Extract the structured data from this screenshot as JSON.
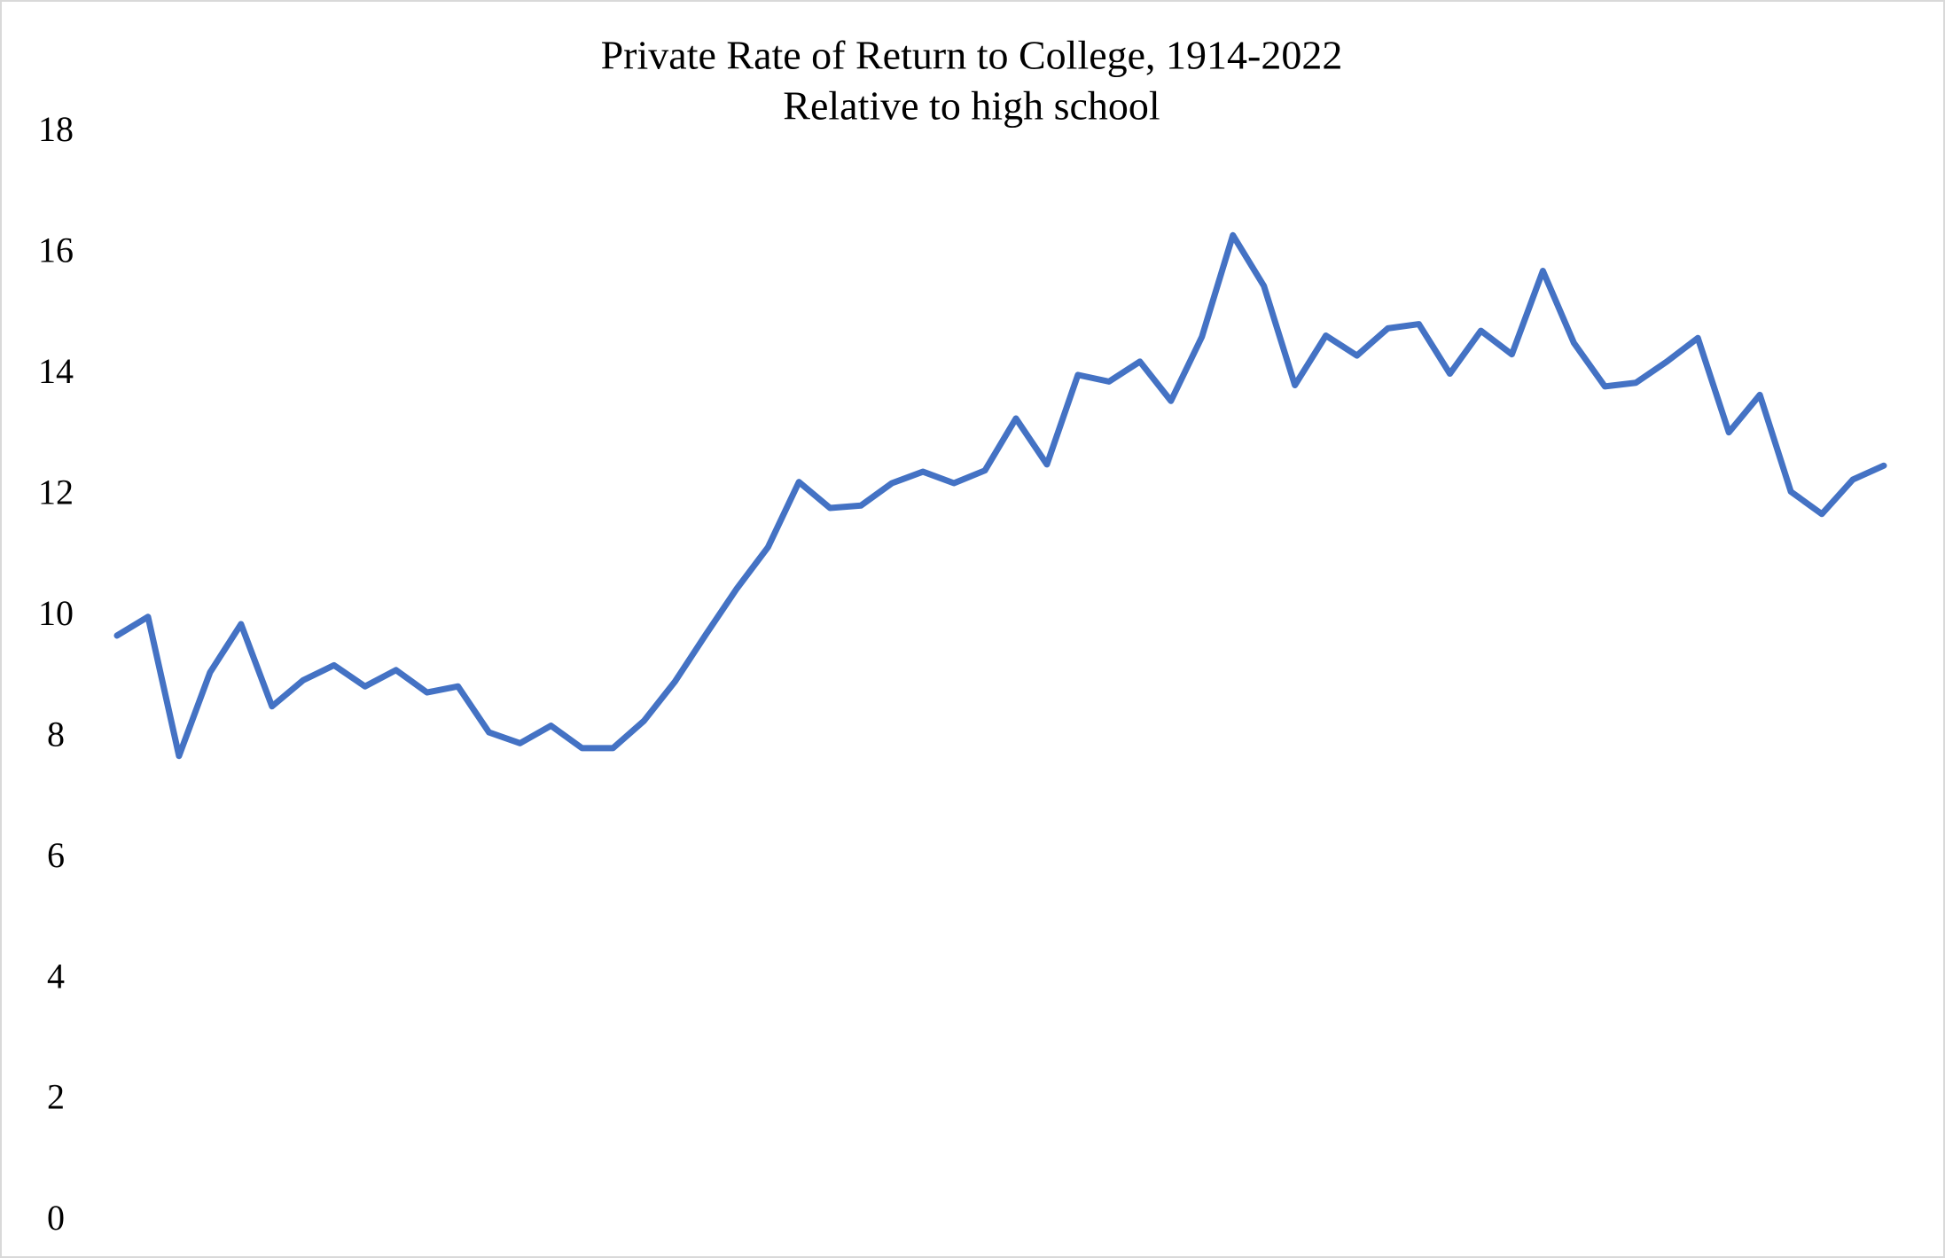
{
  "chart_data": {
    "type": "line",
    "title": "Private Rate of Return to College, 1914-2022",
    "subtitle": "Relative to high school",
    "series": [
      {
        "color": "#4472c4",
        "values": [
          9.69,
          10.0,
          7.7,
          9.08,
          9.88,
          8.52,
          8.95,
          9.2,
          8.85,
          9.12,
          8.75,
          8.85,
          8.09,
          7.91,
          8.2,
          7.83,
          7.83,
          8.28,
          8.93,
          9.71,
          10.47,
          11.15,
          12.23,
          11.8,
          11.84,
          12.21,
          12.4,
          12.21,
          12.42,
          13.28,
          12.52,
          14.0,
          13.89,
          14.22,
          13.57,
          14.63,
          16.31,
          15.47,
          13.83,
          14.65,
          14.32,
          14.77,
          14.84,
          14.02,
          14.73,
          14.34,
          15.72,
          14.53,
          13.81,
          13.87,
          14.22,
          14.61,
          13.05,
          13.67,
          12.07,
          11.7,
          12.27,
          12.5
        ]
      }
    ],
    "ylim": [
      0,
      18
    ],
    "yticks": [
      0,
      2,
      4,
      6,
      8,
      10,
      12,
      14,
      16,
      18
    ],
    "grid": false
  }
}
